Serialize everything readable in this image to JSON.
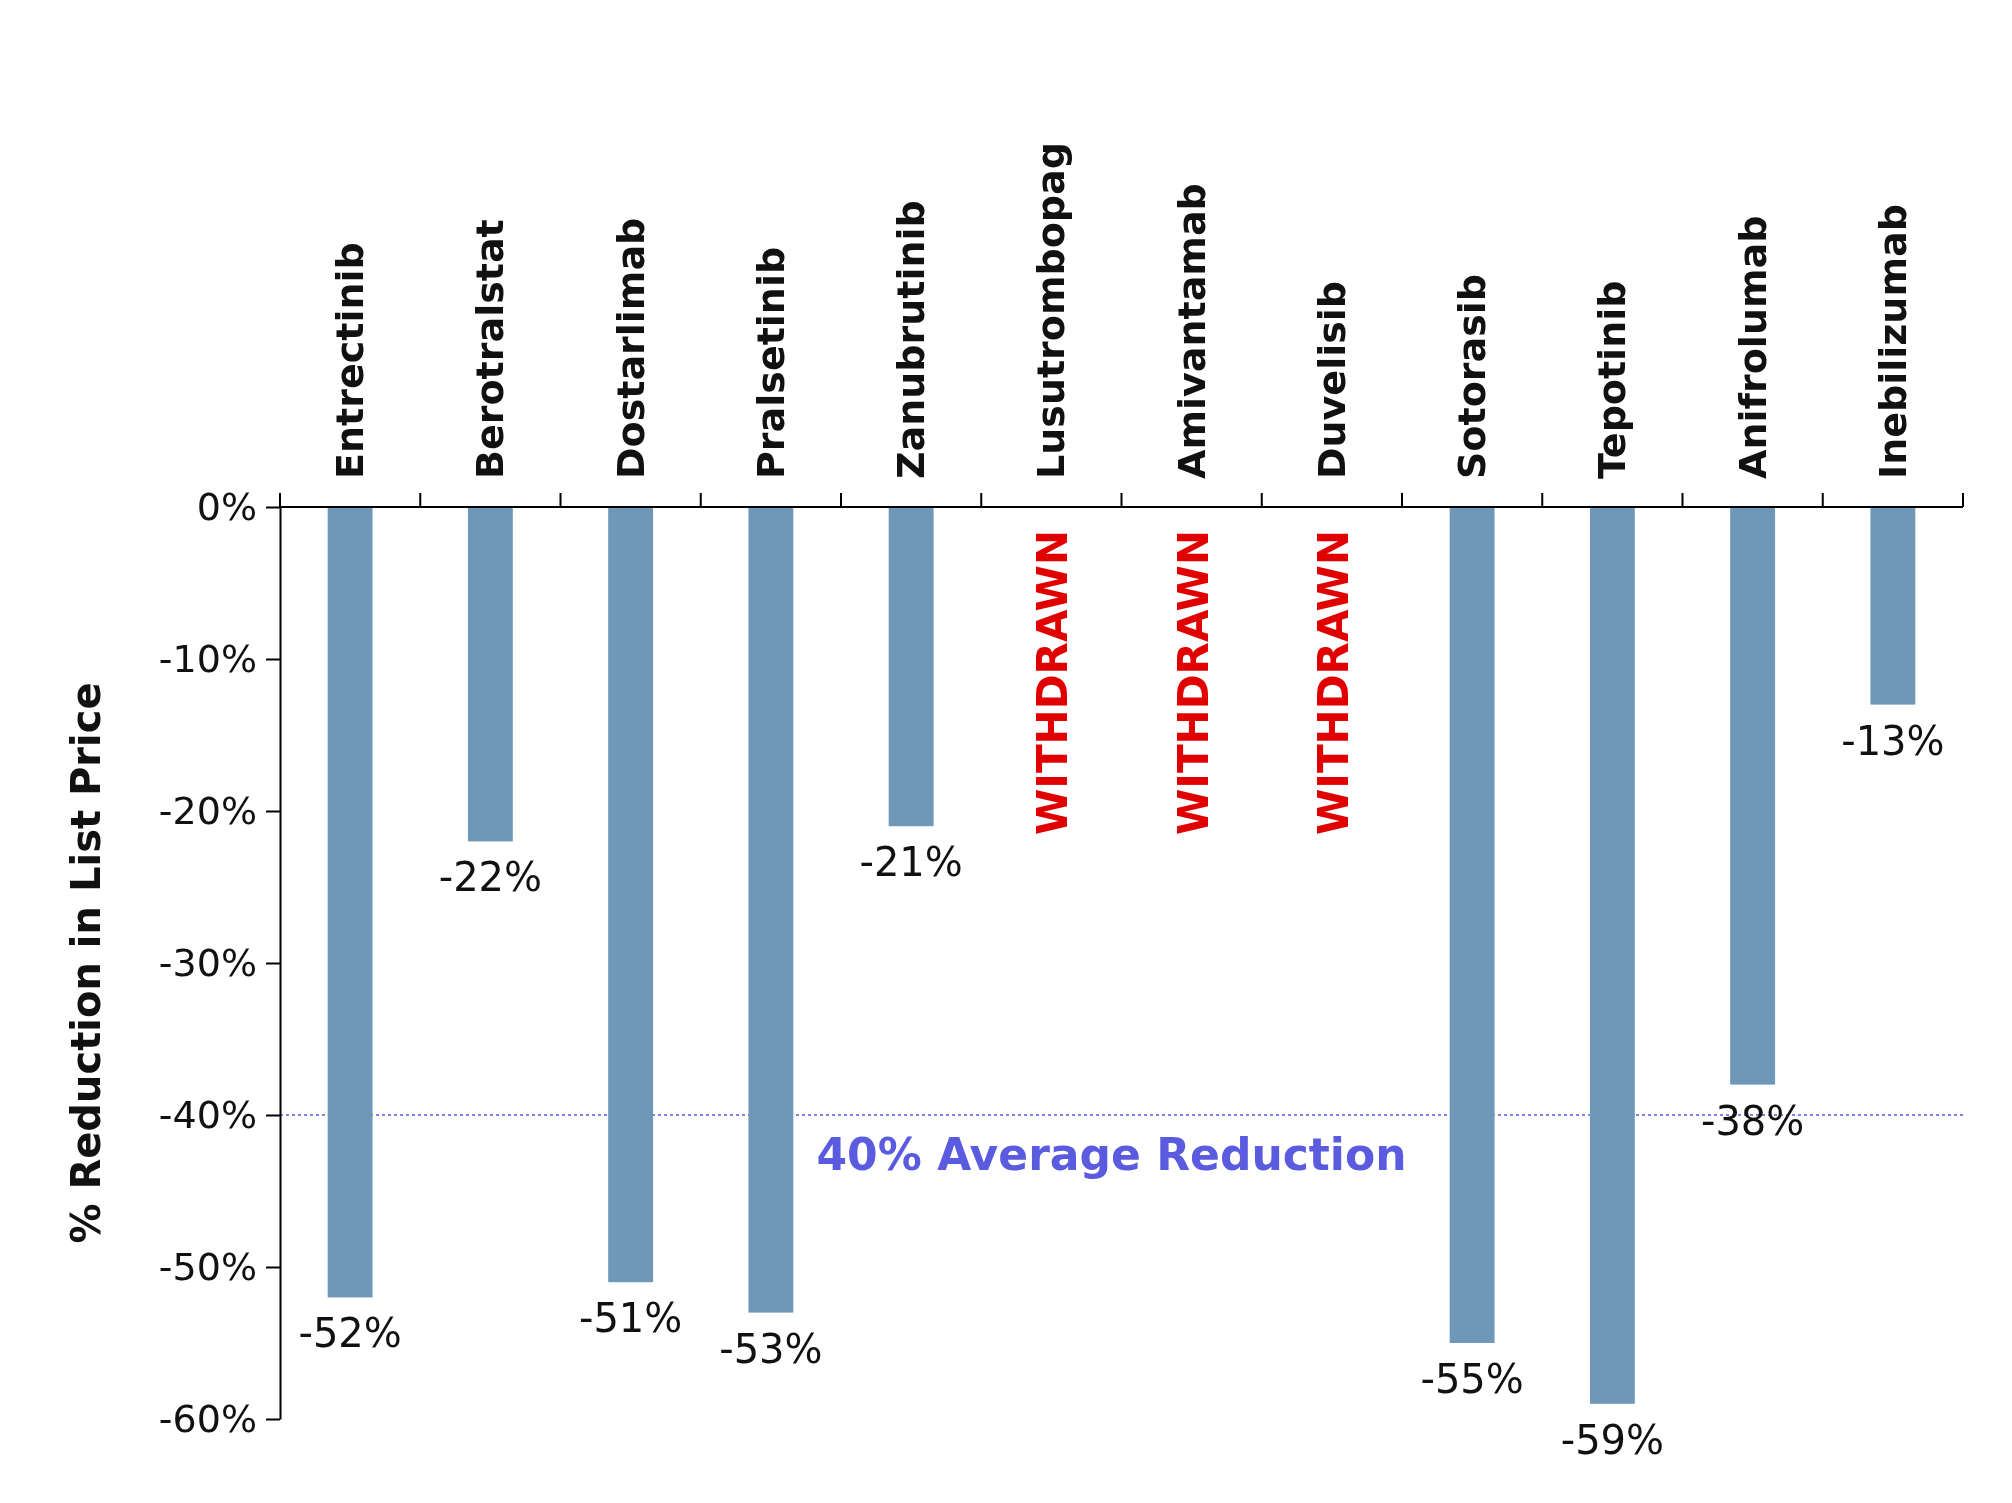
{
  "chart_data": {
    "type": "bar",
    "categories": [
      "Entrectinib",
      "Berotralstat",
      "Dostarlimab",
      "Pralsetinib",
      "Zanubrutinib",
      "Lusutrombopag",
      "Amivantamab",
      "Duvelisib",
      "Sotorasib",
      "Tepotinib",
      "Anifrolumab",
      "Inebilizumab"
    ],
    "values": [
      -52,
      -22,
      -51,
      -53,
      -21,
      null,
      null,
      null,
      -55,
      -59,
      -38,
      -13
    ],
    "value_labels": [
      "-52%",
      "-22%",
      "-51%",
      "-53%",
      "-21%",
      null,
      null,
      null,
      "-55%",
      "-59%",
      "-38%",
      "-13%"
    ],
    "color": "#6f97b8",
    "ylabel": "% Reduction in List Price",
    "ylim": [
      -60,
      0
    ],
    "yticks": [
      {
        "value": 0,
        "label": "0%"
      },
      {
        "value": -10,
        "label": "-10%"
      },
      {
        "value": -20,
        "label": "-20%"
      },
      {
        "value": -30,
        "label": "-30%"
      },
      {
        "value": -40,
        "label": "-40%"
      },
      {
        "value": -50,
        "label": "-50%"
      },
      {
        "value": -60,
        "label": "-60%"
      }
    ],
    "ref_lines": [
      {
        "axis": "y",
        "value": -40,
        "label": "40% Average Reduction",
        "color": "#5b5be0",
        "line_style": "dotted"
      }
    ],
    "annotations": [
      "WITHDRAWN",
      "WITHDRAWN",
      "WITHDRAWN"
    ]
  }
}
